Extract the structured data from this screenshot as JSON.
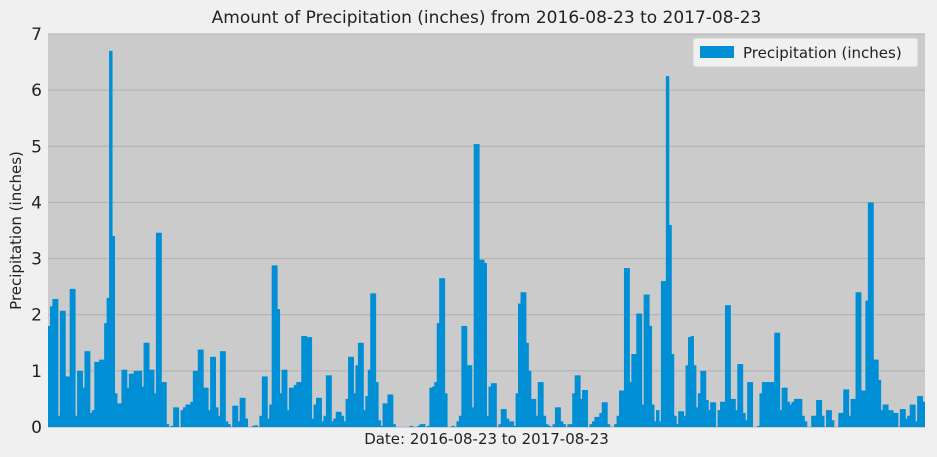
{
  "chart_data": {
    "type": "bar",
    "title": "Amount of Precipitation (inches) from 2016-08-23 to 2017-08-23",
    "xlabel": "Date: 2016-08-23 to 2017-08-23",
    "ylabel": "Precipitation (inches)",
    "ylim": [
      0,
      7
    ],
    "yticks": [
      0,
      1,
      2,
      3,
      4,
      5,
      6,
      7
    ],
    "grid": true,
    "legend": {
      "placement": "top-right"
    },
    "series": [
      {
        "name": "Precipitation (inches)",
        "color": "#008fd5",
        "values": [
          1.8,
          2.15,
          2.28,
          2.28,
          0.2,
          2.07,
          2.07,
          0.9,
          0.9,
          2.46,
          2.46,
          0.2,
          1.0,
          1.0,
          0.7,
          1.35,
          1.35,
          0.25,
          0.3,
          1.16,
          1.16,
          1.2,
          1.2,
          1.85,
          2.3,
          6.7,
          3.4,
          0.6,
          0.42,
          0.42,
          1.02,
          1.02,
          0.7,
          0.95,
          0.95,
          1.0,
          1.0,
          1.0,
          0.72,
          1.5,
          1.5,
          1.02,
          1.02,
          0.6,
          3.46,
          3.46,
          0.8,
          0.8,
          0.05,
          0.0,
          0.02,
          0.35,
          0.35,
          0.0,
          0.3,
          0.35,
          0.4,
          0.4,
          0.45,
          1.0,
          1.0,
          1.38,
          1.38,
          0.7,
          0.7,
          0.3,
          1.25,
          1.25,
          0.35,
          0.2,
          1.35,
          1.35,
          0.1,
          0.05,
          0.0,
          0.38,
          0.38,
          0.1,
          0.52,
          0.52,
          0.15,
          0.0,
          0.0,
          0.02,
          0.03,
          0.0,
          0.2,
          0.9,
          0.9,
          0.15,
          0.4,
          2.88,
          2.88,
          2.1,
          0.6,
          1.02,
          1.02,
          0.3,
          0.7,
          0.7,
          0.75,
          0.8,
          0.8,
          1.62,
          1.62,
          1.6,
          1.6,
          0.15,
          0.4,
          0.52,
          0.52,
          0.1,
          0.2,
          0.92,
          0.92,
          0.1,
          0.15,
          0.27,
          0.27,
          0.2,
          0.1,
          0.5,
          1.25,
          1.25,
          0.6,
          1.1,
          1.5,
          1.5,
          0.3,
          0.55,
          1.02,
          2.38,
          2.38,
          0.8,
          0.12,
          0.02,
          0.42,
          0.42,
          0.58,
          0.58,
          0.05,
          0.0,
          0.0,
          0.0,
          0.0,
          0.0,
          0.0,
          0.02,
          0.0,
          0.0,
          0.02,
          0.05,
          0.05,
          0.0,
          0.02,
          0.7,
          0.72,
          0.8,
          1.85,
          2.65,
          2.65,
          0.6,
          0.0,
          0.0,
          0.02,
          0.0,
          0.1,
          0.2,
          1.8,
          1.8,
          1.1,
          1.1,
          0.35,
          5.04,
          5.04,
          2.98,
          2.98,
          2.92,
          0.2,
          0.72,
          0.78,
          0.78,
          0.0,
          0.05,
          0.32,
          0.32,
          0.15,
          0.1,
          0.1,
          0.02,
          0.6,
          2.2,
          2.4,
          2.4,
          1.5,
          1.0,
          0.5,
          0.5,
          0.2,
          0.8,
          0.8,
          0.2,
          0.05,
          0.02,
          0.0,
          0.05,
          0.35,
          0.35,
          0.1,
          0.05,
          0.0,
          0.05,
          0.05,
          0.6,
          0.92,
          0.92,
          0.5,
          0.66,
          0.66,
          0.0,
          0.05,
          0.1,
          0.18,
          0.18,
          0.25,
          0.44,
          0.44,
          0.05,
          0.0,
          0.0,
          0.05,
          0.2,
          0.65,
          0.65,
          2.83,
          2.83,
          0.8,
          1.3,
          1.3,
          2.02,
          2.02,
          0.4,
          2.36,
          2.36,
          1.8,
          0.4,
          0.1,
          0.3,
          0.1,
          2.6,
          2.6,
          6.25,
          3.6,
          1.3,
          0.2,
          0.05,
          0.28,
          0.28,
          0.2,
          1.1,
          1.6,
          1.62,
          1.1,
          0.35,
          0.6,
          1.0,
          1.0,
          0.48,
          0.3,
          0.44,
          0.44,
          0.0,
          0.3,
          0.45,
          0.45,
          2.17,
          2.17,
          0.5,
          0.5,
          0.3,
          1.12,
          1.12,
          0.25,
          0.12,
          0.8,
          0.8,
          0.0,
          0.0,
          0.02,
          0.6,
          0.8,
          0.8,
          0.8,
          0.8,
          0.8,
          1.68,
          1.68,
          0.3,
          0.7,
          0.7,
          0.45,
          0.4,
          0.45,
          0.5,
          0.5,
          0.5,
          0.2,
          0.1,
          0.0,
          0.0,
          0.2,
          0.2,
          0.48,
          0.48,
          0.2,
          0.0,
          0.3,
          0.3,
          0.12,
          0.0,
          0.0,
          0.25,
          0.25,
          0.67,
          0.67,
          0.2,
          0.5,
          0.5,
          2.4,
          2.4,
          0.65,
          0.65,
          2.25,
          4.0,
          4.0,
          1.2,
          1.2,
          0.84,
          0.3,
          0.4,
          0.4,
          0.3,
          0.3,
          0.25,
          0.25,
          0.0,
          0.32,
          0.32,
          0.15,
          0.2,
          0.4,
          0.4,
          0.1,
          0.55,
          0.55,
          0.45
        ]
      }
    ]
  }
}
